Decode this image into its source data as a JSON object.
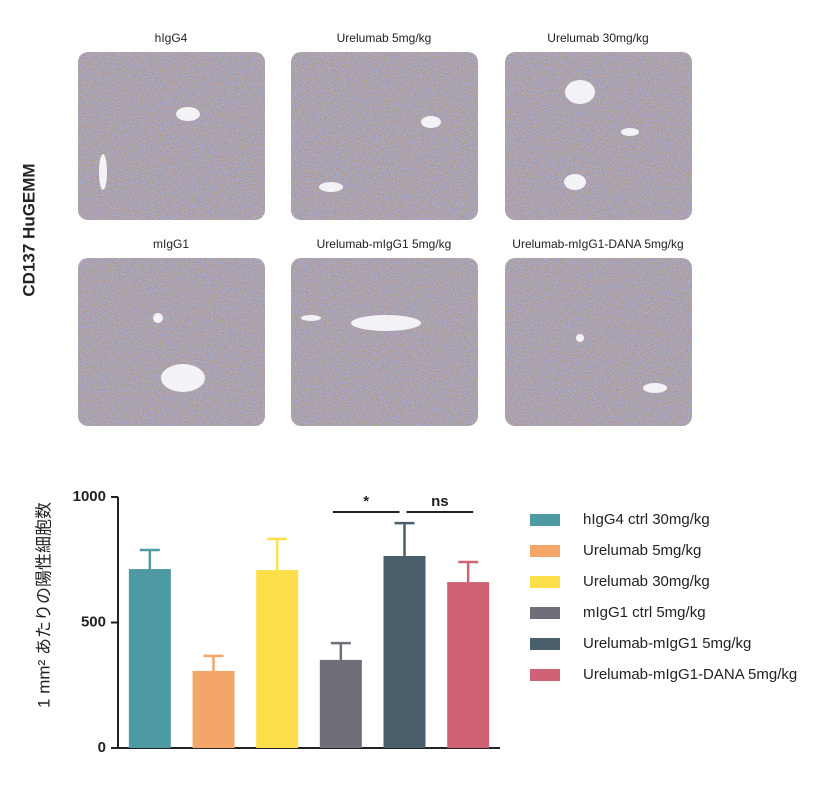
{
  "figure": {
    "row_label": "CD137 HuGEMM",
    "panels": [
      "hIgG4",
      "Urelumab 5mg/kg",
      "Urelumab 30mg/kg",
      "mIgG1",
      "Urelumab-mIgG1 5mg/kg",
      "Urelumab-mIgG1-DANA 5mg/kg"
    ]
  },
  "chart_data": {
    "type": "bar",
    "y_label": "1 mm² あたりの陽性細胞数",
    "categories": [
      "hIgG4 ctrl 30mg/kg",
      "Urelumab 5mg/kg",
      "Urelumab 30mg/kg",
      "mIgG1 ctrl 5mg/kg",
      "Urelumab-mIgG1 5mg/kg",
      "Urelumab-mIgG1-DANA 5mg/kg"
    ],
    "values": [
      713,
      307,
      709,
      351,
      765,
      661
    ],
    "errors": [
      76,
      60,
      124,
      67,
      131,
      80
    ],
    "colors": [
      "#4e9aa3",
      "#f4a56a",
      "#fddf4c",
      "#6e6f78",
      "#4a5f6c",
      "#cf6275"
    ],
    "ylim": [
      0,
      1000
    ],
    "yticks": [
      0,
      500,
      1000
    ],
    "annotations": [
      "*",
      "ns"
    ]
  }
}
